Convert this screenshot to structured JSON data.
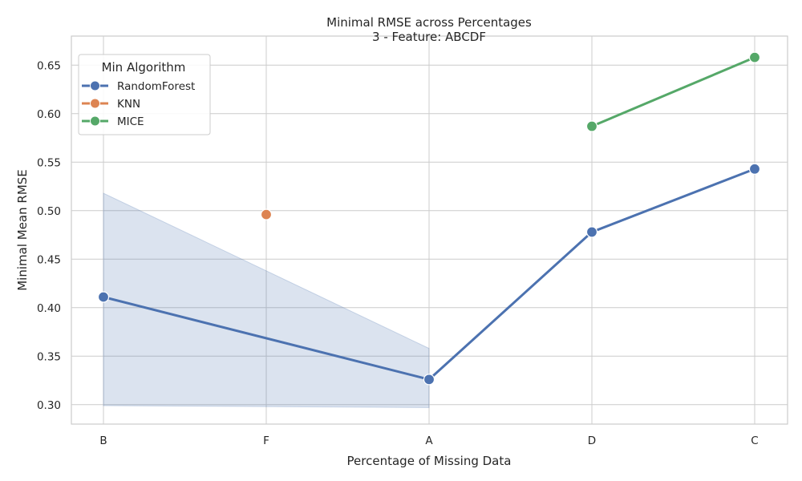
{
  "chart_data": {
    "type": "line",
    "title": "Minimal RMSE across Percentages",
    "subtitle": "3 - Feature: ABCDF",
    "xlabel": "Percentage of Missing Data",
    "ylabel": "Minimal Mean RMSE",
    "categories": [
      "B",
      "F",
      "A",
      "D",
      "C"
    ],
    "ylim": [
      0.28,
      0.68
    ],
    "yticks": [
      0.3,
      0.35,
      0.4,
      0.45,
      0.5,
      0.55,
      0.6,
      0.65
    ],
    "grid": true,
    "legend": {
      "title": "Min Algorithm",
      "placement": "top-left"
    },
    "series": [
      {
        "name": "RandomForest",
        "color": "#4c72b0",
        "values": [
          0.411,
          null,
          0.326,
          0.478,
          0.543
        ],
        "band": {
          "x": [
            "B",
            "A"
          ],
          "lower": [
            0.299,
            0.297
          ],
          "upper": [
            0.518,
            0.358
          ]
        }
      },
      {
        "name": "KNN",
        "color": "#dd8452",
        "values": [
          null,
          0.496,
          null,
          null,
          null
        ]
      },
      {
        "name": "MICE",
        "color": "#55a868",
        "values": [
          null,
          null,
          null,
          0.587,
          0.658
        ]
      }
    ]
  }
}
